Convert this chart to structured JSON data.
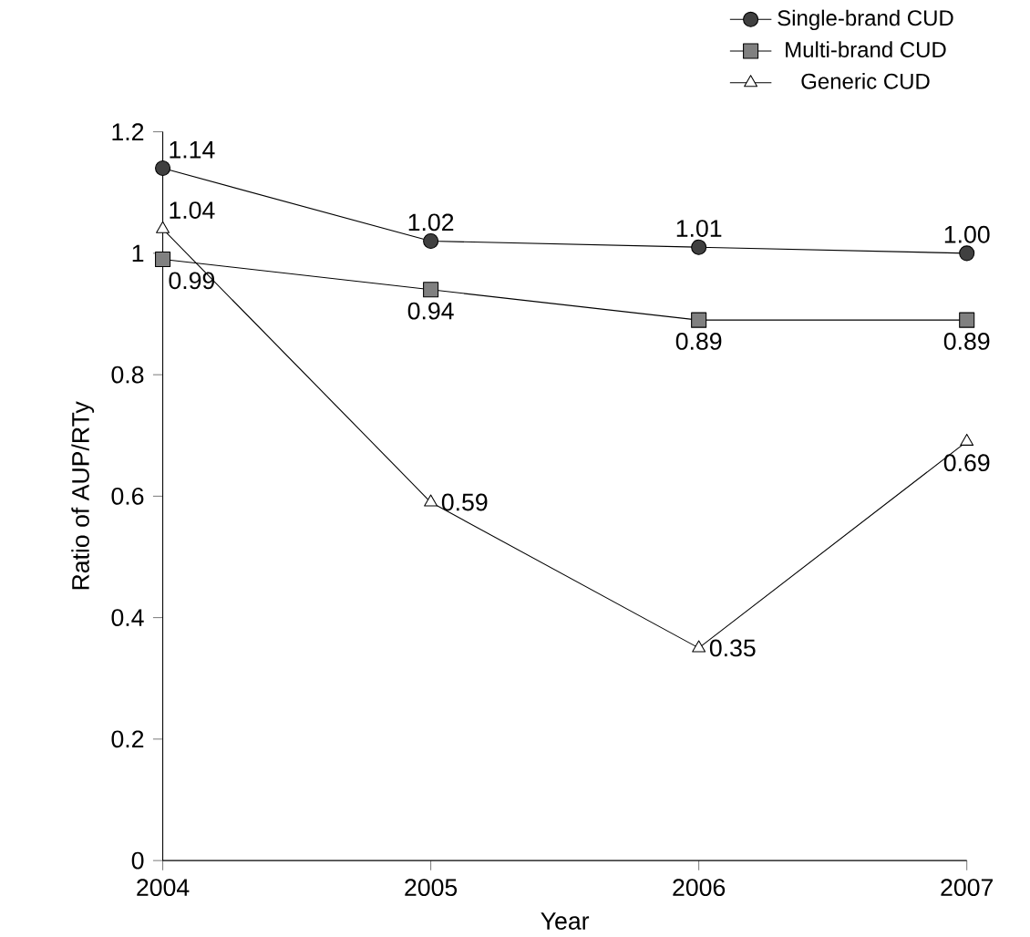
{
  "chart_data": {
    "type": "line",
    "xlabel": "Year",
    "ylabel": "Ratio of AUP/RTy",
    "x": [
      2004,
      2005,
      2006,
      2007
    ],
    "xlim": [
      2004,
      2007
    ],
    "xticks": [
      2004,
      2005,
      2006,
      2007
    ],
    "ylim": [
      0,
      1.2
    ],
    "yticks": [
      0,
      0.2,
      0.4,
      0.6,
      0.8,
      1,
      1.2
    ],
    "legend": "top right",
    "grid": false,
    "line_style": "solid",
    "series": [
      {
        "name": "Single-brand CUD",
        "color": "#404040",
        "marker": "circle",
        "values": [
          1.14,
          1.02,
          1.01,
          1.0
        ],
        "value_labels": [
          "1.14",
          "1.02",
          "1.01",
          "1.00"
        ]
      },
      {
        "name": "Multi-brand CUD",
        "color": "#808080",
        "marker": "square",
        "values": [
          0.99,
          0.94,
          0.89,
          0.89
        ],
        "value_labels": [
          "0.99",
          "0.94",
          "0.89",
          "0.89"
        ]
      },
      {
        "name": "Generic CUD",
        "color": "#ffffff",
        "marker": "triangle",
        "values": [
          1.04,
          0.59,
          0.35,
          0.69
        ],
        "value_labels": [
          "1.04",
          "0.59",
          "0.35",
          "0.69"
        ]
      }
    ]
  }
}
